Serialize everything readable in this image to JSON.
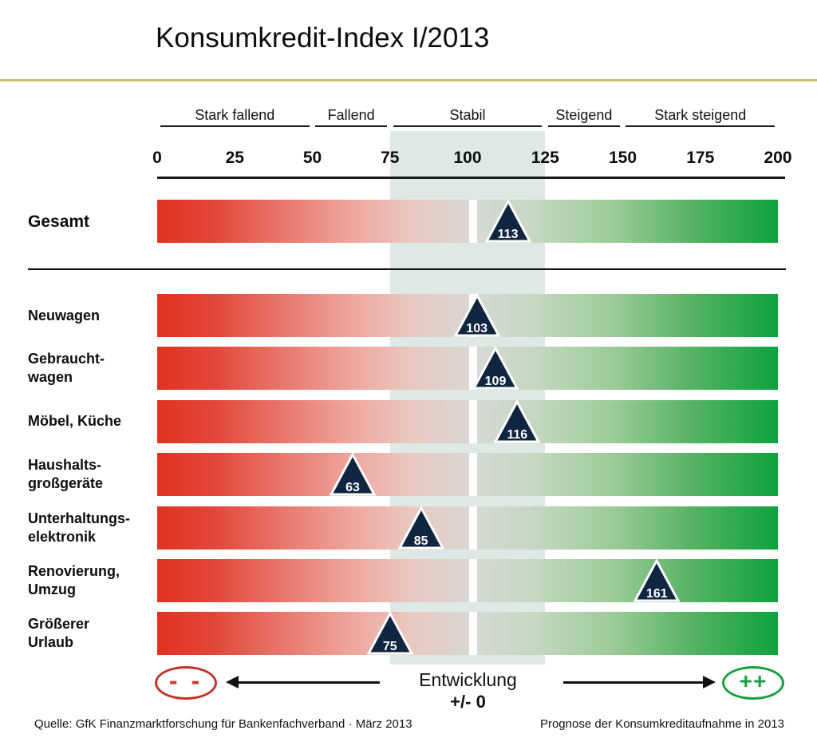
{
  "title": "Konsumkredit-Index I/2013",
  "chart_data": {
    "type": "scatter",
    "title": "Konsumkredit-Index I/2013",
    "xlabel": "",
    "ylabel": "",
    "xlim": [
      0,
      200
    ],
    "x_ticks": [
      0,
      25,
      50,
      75,
      100,
      125,
      150,
      175,
      200
    ],
    "zones": [
      {
        "label": "Stark fallend",
        "from": 0,
        "to": 50
      },
      {
        "label": "Fallend",
        "from": 50,
        "to": 75
      },
      {
        "label": "Stabil",
        "from": 75,
        "to": 125
      },
      {
        "label": "Steigend",
        "from": 125,
        "to": 150
      },
      {
        "label": "Stark steigend",
        "from": 150,
        "to": 200
      }
    ],
    "stabil_band": [
      75,
      125
    ],
    "series": [
      {
        "name": "Gesamt",
        "value": 113,
        "display_lines": [
          "Gesamt"
        ],
        "group": "total"
      },
      {
        "name": "Neuwagen",
        "value": 103,
        "display_lines": [
          "Neuwagen"
        ],
        "group": "category"
      },
      {
        "name": "Gebrauchtwagen",
        "value": 109,
        "display_lines": [
          "Gebraucht-",
          "wagen"
        ],
        "group": "category"
      },
      {
        "name": "Möbel, Küche",
        "value": 116,
        "display_lines": [
          "Möbel, Küche"
        ],
        "group": "category"
      },
      {
        "name": "Haushaltsgroßgeräte",
        "value": 63,
        "display_lines": [
          "Haushalts-",
          "großgeräte"
        ],
        "group": "category"
      },
      {
        "name": "Unterhaltungselektronik",
        "value": 85,
        "display_lines": [
          "Unterhaltungs-",
          "elektronik"
        ],
        "group": "category"
      },
      {
        "name": "Renovierung, Umzug",
        "value": 161,
        "display_lines": [
          "Renovierung,",
          "Umzug"
        ],
        "group": "category"
      },
      {
        "name": "Größerer Urlaub",
        "value": 75,
        "display_lines": [
          "Größerer",
          "Urlaub"
        ],
        "group": "category"
      }
    ]
  },
  "legend": {
    "negative_symbol": "- -",
    "positive_symbol": "++",
    "center_label": "Entwicklung",
    "center_sublabel": "+/- 0"
  },
  "footer": {
    "source": "Quelle: GfK Finanzmarktforschung für Bankenfachverband · März 2013",
    "note": "Prognose der Konsumkreditaufnahme in 2013"
  },
  "colors": {
    "bar_red": "#e13220",
    "bar_green": "#0da23c",
    "marker_navy": "#102540",
    "stabil_band": "#dee9e5",
    "title_rule_gold": "#d5ba6a",
    "negative_red": "#c13529",
    "negative_text_red": "#d23a2a",
    "positive_green": "#17a13f"
  }
}
